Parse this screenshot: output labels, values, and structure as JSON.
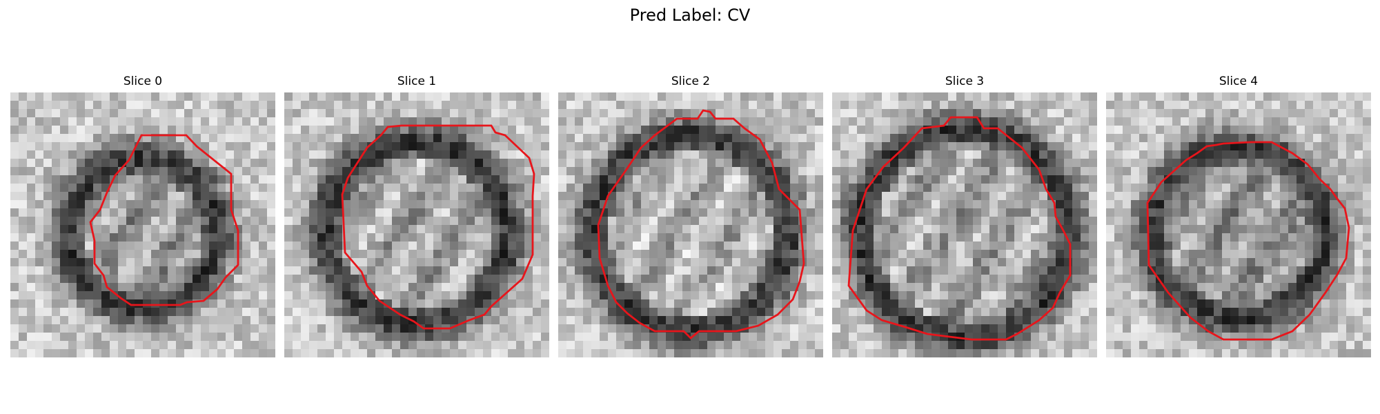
{
  "figure": {
    "title": "Pred Label: CV"
  },
  "panels": [
    {
      "title": "Slice 0",
      "contour_color": "#e8151b",
      "image": "grayscale-cell-micrograph"
    },
    {
      "title": "Slice 1",
      "contour_color": "#e8151b",
      "image": "grayscale-cell-micrograph"
    },
    {
      "title": "Slice 2",
      "contour_color": "#e8151b",
      "image": "grayscale-cell-micrograph"
    },
    {
      "title": "Slice 3",
      "contour_color": "#e8151b",
      "image": "grayscale-cell-micrograph"
    },
    {
      "title": "Slice 4",
      "contour_color": "#e8151b",
      "image": "grayscale-cell-micrograph"
    }
  ]
}
